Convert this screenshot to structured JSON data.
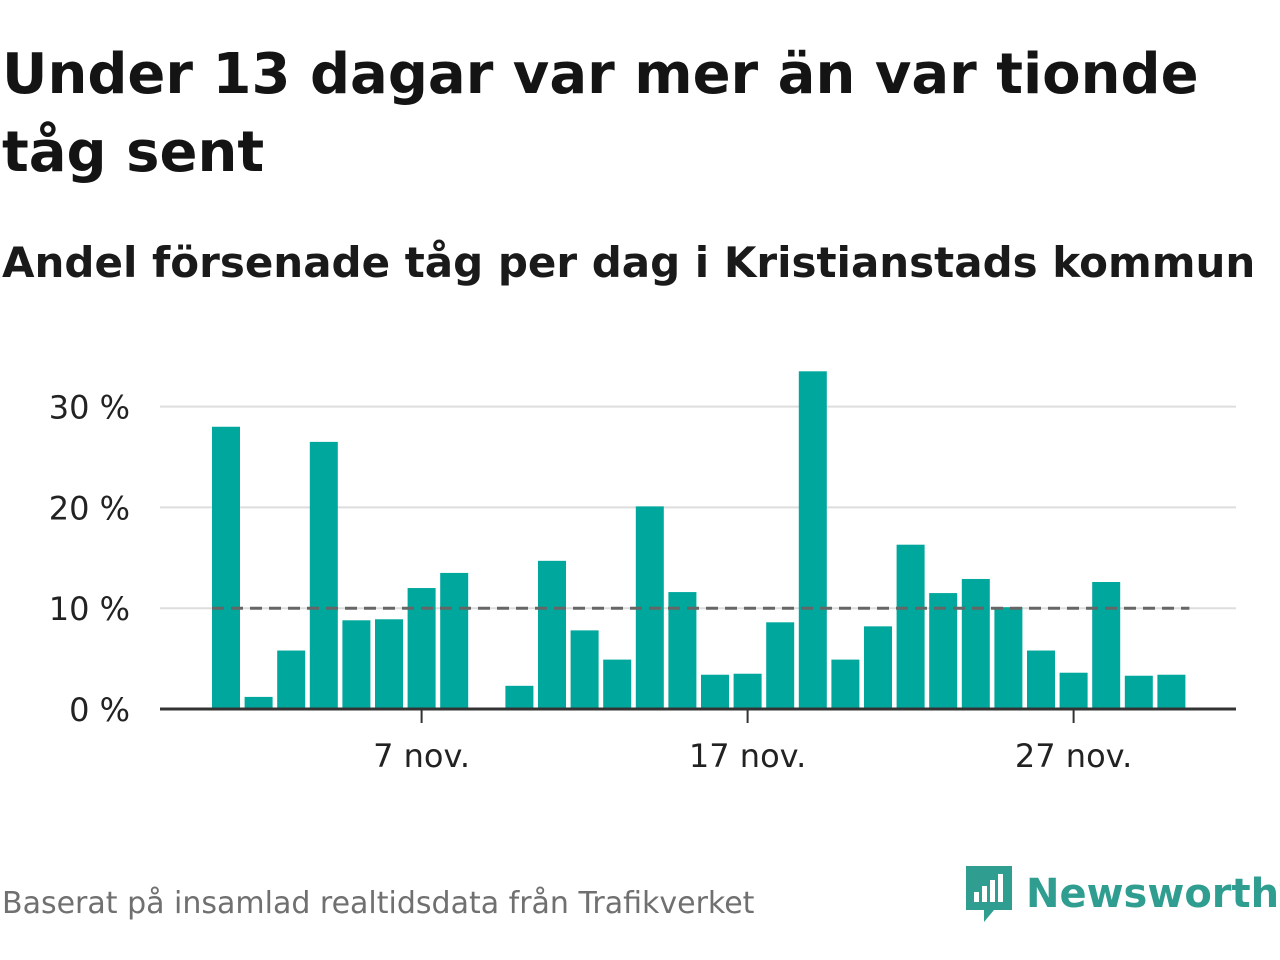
{
  "header": {
    "title": "Under 13 dagar var mer än var tionde tåg sent",
    "subtitle": "Andel försenade tåg per dag i Kristianstads kommun"
  },
  "footer": {
    "source": "Baserat på insamlad realtidsdata från Trafikverket",
    "brand": "Newsworthy"
  },
  "colors": {
    "bar": "#00a79d",
    "reference_line": "#666666",
    "grid": "#dddddd",
    "axis": "#333333",
    "brand": "#2f9e90"
  },
  "chart_data": {
    "type": "bar",
    "title": "Under 13 dagar var mer än var tionde tåg sent",
    "subtitle": "Andel försenade tåg per dag i Kristianstads kommun",
    "x": [
      "2023-11-01",
      "2023-11-02",
      "2023-11-03",
      "2023-11-04",
      "2023-11-05",
      "2023-11-06",
      "2023-11-07",
      "2023-11-08",
      "2023-11-09",
      "2023-11-10",
      "2023-11-11",
      "2023-11-12",
      "2023-11-13",
      "2023-11-14",
      "2023-11-15",
      "2023-11-16",
      "2023-11-17",
      "2023-11-18",
      "2023-11-19",
      "2023-11-20",
      "2023-11-21",
      "2023-11-22",
      "2023-11-23",
      "2023-11-24",
      "2023-11-25",
      "2023-11-26",
      "2023-11-27",
      "2023-11-28",
      "2023-11-29",
      "2023-11-30"
    ],
    "values": [
      28,
      1.2,
      5.8,
      26.5,
      8.8,
      8.9,
      12,
      13.5,
      0,
      2.3,
      14.7,
      7.8,
      4.9,
      20.1,
      11.6,
      3.4,
      3.5,
      8.6,
      33.5,
      4.9,
      8.2,
      16.3,
      11.5,
      12.9,
      10.1,
      5.8,
      3.6,
      12.6,
      3.3,
      3.4
    ],
    "x_ticks": [
      {
        "x": "2023-11-07",
        "label": "7 nov."
      },
      {
        "x": "2023-11-17",
        "label": "17 nov."
      },
      {
        "x": "2023-11-27",
        "label": "27 nov."
      }
    ],
    "y_ticks": [
      {
        "value": 0,
        "label": "0 %"
      },
      {
        "value": 10,
        "label": "10 %"
      },
      {
        "value": 20,
        "label": "20 %"
      },
      {
        "value": 30,
        "label": "30 %"
      }
    ],
    "ylim": [
      0,
      34
    ],
    "reference_line": {
      "value": 10,
      "style": "dashed"
    },
    "grid": true,
    "legend": false,
    "unit": "%"
  }
}
